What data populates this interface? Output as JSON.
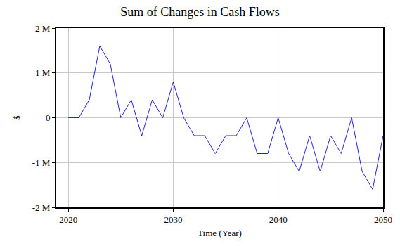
{
  "chart_data": {
    "type": "line",
    "title": "Sum of Changes in Cash Flows",
    "x_label": "Time (Year)",
    "y_label": "$",
    "x": [
      2020,
      2021,
      2022,
      2023,
      2024,
      2025,
      2026,
      2027,
      2028,
      2029,
      2030,
      2031,
      2032,
      2033,
      2034,
      2035,
      2036,
      2037,
      2038,
      2039,
      2040,
      2041,
      2042,
      2043,
      2044,
      2045,
      2046,
      2047,
      2048,
      2049,
      2050
    ],
    "values": [
      0,
      0,
      400000,
      1600000,
      1200000,
      0,
      400000,
      -400000,
      400000,
      0,
      800000,
      0,
      -400000,
      -400000,
      -800000,
      -400000,
      -400000,
      0,
      -800000,
      -800000,
      0,
      -800000,
      -1200000,
      -400000,
      -1200000,
      -400000,
      -800000,
      0,
      -1200000,
      -1600000,
      -400000
    ],
    "color": "#2222dd",
    "xlim": [
      2018.85,
      2050
    ],
    "xticks": [
      2020,
      2030,
      2040,
      2050
    ],
    "ylim": [
      -2000000,
      2000000
    ],
    "yticks": [
      {
        "value": -2000000,
        "label": "-2 M"
      },
      {
        "value": -1000000,
        "label": "-1 M"
      },
      0,
      {
        "value": 1000000,
        "label": "1 M"
      },
      {
        "value": 2000000,
        "label": "2 M"
      }
    ],
    "grid": true
  }
}
